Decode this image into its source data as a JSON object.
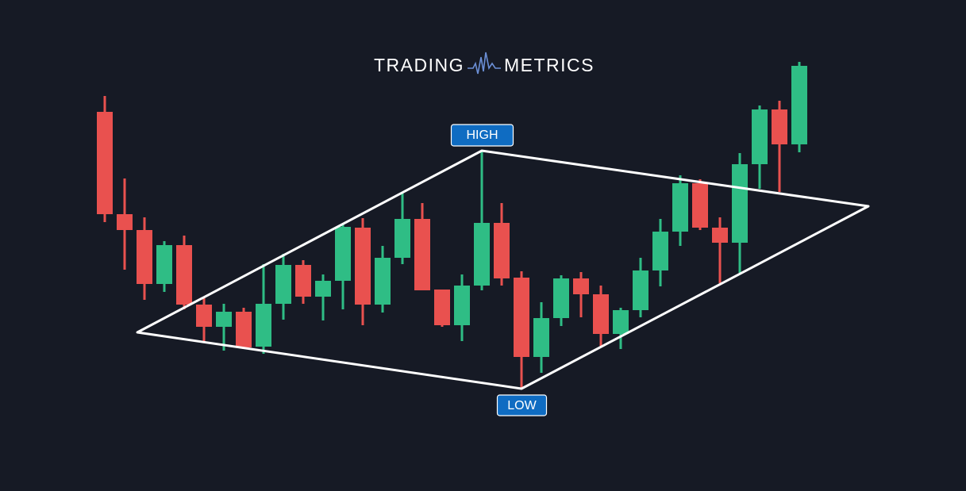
{
  "chart_data": {
    "type": "candlestick",
    "brand_left": "TRADING",
    "brand_right": "METRICS",
    "high_label": "HIGH",
    "low_label": "LOW",
    "up_color": "#2fbd85",
    "down_color": "#e9514f",
    "ylim": [
      0,
      619
    ],
    "open": [
      478,
      349,
      329,
      261,
      310,
      235,
      207,
      226,
      182,
      236,
      285,
      245,
      265,
      332,
      235,
      294,
      343,
      254,
      209,
      259,
      338,
      269,
      169,
      218,
      268,
      248,
      198,
      228,
      278,
      327,
      388,
      332,
      313,
      412,
      481,
      437
    ],
    "high": [
      498,
      394,
      345,
      315,
      322,
      245,
      236,
      231,
      286,
      299,
      291,
      273,
      336,
      344,
      309,
      375,
      363,
      254,
      273,
      429,
      363,
      277,
      238,
      272,
      276,
      259,
      231,
      294,
      343,
      398,
      393,
      345,
      426,
      486,
      492,
      541
    ],
    "low": [
      339,
      279,
      241,
      251,
      229,
      187,
      177,
      179,
      173,
      216,
      236,
      215,
      229,
      209,
      225,
      286,
      253,
      207,
      189,
      253,
      259,
      129,
      149,
      208,
      219,
      182,
      179,
      219,
      258,
      309,
      329,
      262,
      275,
      381,
      377,
      427
    ],
    "close": [
      349,
      329,
      261,
      310,
      235,
      207,
      226,
      181,
      236,
      285,
      245,
      265,
      333,
      235,
      294,
      343,
      253,
      209,
      259,
      338,
      268,
      169,
      218,
      268,
      248,
      198,
      228,
      278,
      327,
      388,
      332,
      313,
      412,
      481,
      437,
      536
    ]
  }
}
